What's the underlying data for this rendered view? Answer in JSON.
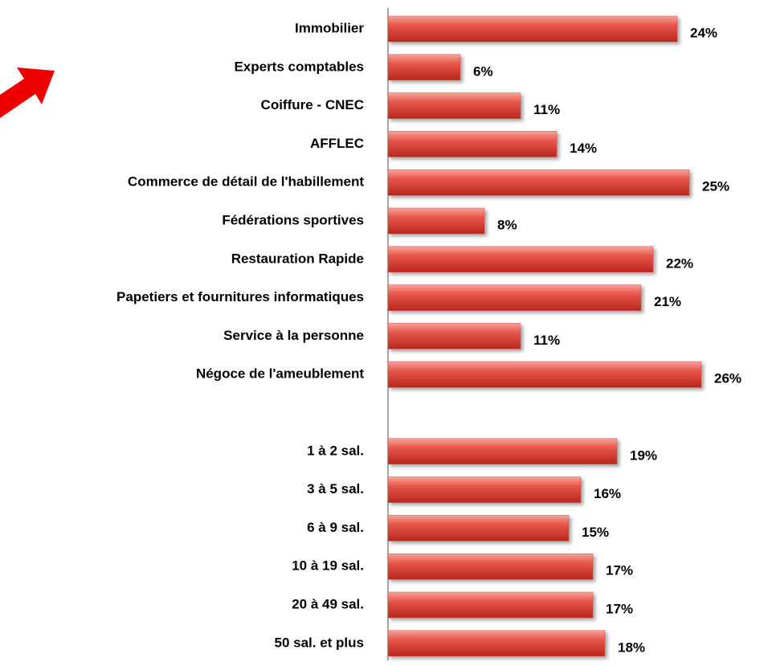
{
  "chart_data": {
    "type": "hbar",
    "categories": [
      "Immobilier",
      "Experts comptables",
      "Coiffure - CNEC",
      "AFFLEC",
      "Commerce de détail de l'habillement",
      "Fédérations sportives",
      "Restauration Rapide",
      "Papetiers et fournitures informatiques",
      "Service à la personne",
      "Négoce de l'ameublement",
      null,
      "1 à 2 sal.",
      "3 à 5 sal.",
      "6 à 9 sal.",
      "10 à 19 sal.",
      "20 à 49 sal.",
      "50 sal. et plus"
    ],
    "values": [
      24,
      6,
      11,
      14,
      25,
      8,
      22,
      21,
      11,
      26,
      null,
      19,
      16,
      15,
      17,
      17,
      18
    ],
    "value_labels": [
      "24%",
      "6%",
      "11%",
      "14%",
      "25%",
      "8%",
      "22%",
      "21%",
      "11%",
      "26%",
      null,
      "19%",
      "16%",
      "15%",
      "17%",
      "17%",
      "18%"
    ],
    "color": "#e0463c",
    "xlim": [
      0,
      30
    ]
  }
}
